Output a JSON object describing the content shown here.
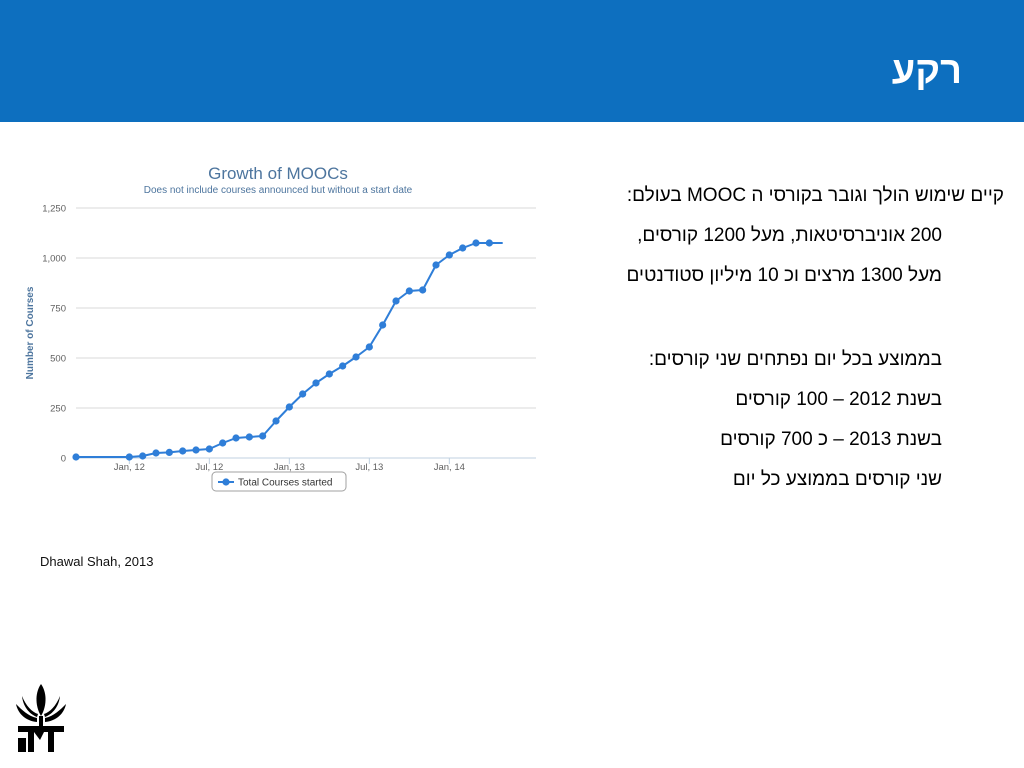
{
  "slide": {
    "title": "רקע",
    "bullets": [
      "קיים שימוש הולך וגובר בקורסי ה MOOC בעולם:",
      "200 אוניברסיטאות, מעל 1200 קורסים,",
      "מעל 1300 מרצים וכ 10 מיליון סטודנטים",
      "בממוצע בכל יום נפתחים שני קורסים:",
      "בשנת 2012 – 100 קורסים",
      "בשנת 2013 – כ 700 קורסים",
      "שני קורסים בממוצע כל יום"
    ],
    "source": "Dhawal Shah, 2013",
    "colors": {
      "header": "#0d6fbf",
      "series": "#2f7ed8",
      "chart_title": "#4d759e"
    },
    "logo_icon": "university-logo-icon"
  },
  "chart_data": {
    "type": "line",
    "title": "Growth of MOOCs",
    "subtitle": "Does not include courses announced but without a start date",
    "ylabel": "Number of Courses",
    "xlabel": "",
    "ylim": [
      0,
      1250
    ],
    "yticks": [
      0,
      250,
      500,
      750,
      1000,
      1250
    ],
    "xtick_labels": [
      "Jan, 12",
      "Jul, 12",
      "Jan, 13",
      "Jul, 13",
      "Jan, 14"
    ],
    "xtick_months": [
      0,
      6,
      12,
      18,
      24
    ],
    "xlim_months": [
      -4,
      30.5
    ],
    "grid": true,
    "legend_position": "bottom",
    "series": [
      {
        "name": "Total Courses started",
        "x_months": [
          -4,
          0,
          1,
          2,
          3,
          4,
          5,
          6,
          7,
          8,
          9,
          10,
          11,
          12,
          13,
          14,
          15,
          16,
          17,
          18,
          19,
          20,
          21,
          22,
          23,
          24,
          25,
          26,
          27,
          28
        ],
        "values": [
          5,
          5,
          10,
          25,
          28,
          35,
          40,
          45,
          75,
          100,
          105,
          110,
          185,
          255,
          320,
          375,
          420,
          460,
          505,
          555,
          665,
          785,
          835,
          840,
          965,
          1015,
          1050,
          1075,
          1075,
          1075
        ]
      }
    ]
  }
}
